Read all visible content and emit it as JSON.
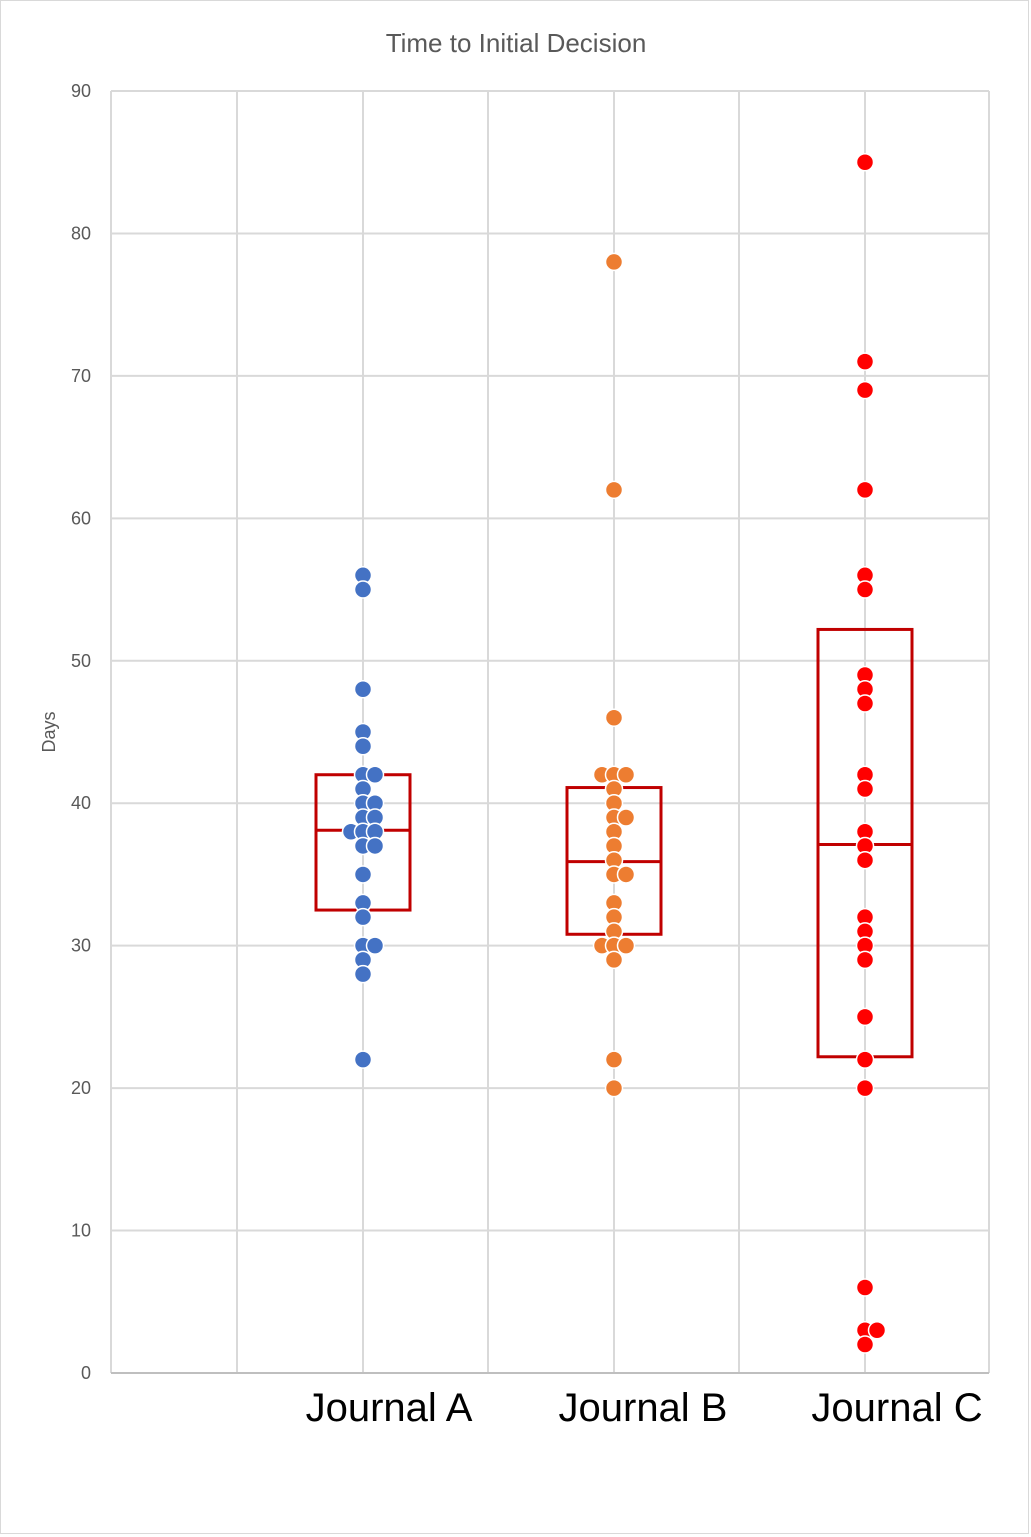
{
  "chart_data": {
    "type": "scatter",
    "title": "Time to Initial Decision",
    "ylabel": "Days",
    "xlabel": "",
    "ylim": [
      0,
      90
    ],
    "yticks": [
      "0",
      "10",
      "20",
      "30",
      "40",
      "50",
      "60",
      "70",
      "80",
      "90"
    ],
    "categories": [
      "Journal A",
      "Journal B",
      "Journal C"
    ],
    "grid": true,
    "legend": "none",
    "series": [
      {
        "category": "Journal A",
        "color": "#4472c4",
        "points": [
          {
            "x": 0,
            "y": 56
          },
          {
            "x": 0,
            "y": 55
          },
          {
            "x": 0,
            "y": 48
          },
          {
            "x": 0,
            "y": 45
          },
          {
            "x": 0,
            "y": 44
          },
          {
            "x": 0,
            "y": 42
          },
          {
            "x": 1,
            "y": 42
          },
          {
            "x": 0,
            "y": 41
          },
          {
            "x": 0,
            "y": 40
          },
          {
            "x": 1,
            "y": 40
          },
          {
            "x": 0,
            "y": 39
          },
          {
            "x": 1,
            "y": 39
          },
          {
            "x": -1,
            "y": 38
          },
          {
            "x": 0,
            "y": 38
          },
          {
            "x": 1,
            "y": 38
          },
          {
            "x": 0,
            "y": 37
          },
          {
            "x": 1,
            "y": 37
          },
          {
            "x": 0,
            "y": 35
          },
          {
            "x": 0,
            "y": 33
          },
          {
            "x": 0,
            "y": 32
          },
          {
            "x": 0,
            "y": 30
          },
          {
            "x": 1,
            "y": 30
          },
          {
            "x": 0,
            "y": 29
          },
          {
            "x": 0,
            "y": 28
          },
          {
            "x": 0,
            "y": 22
          }
        ],
        "box": {
          "q1": 32.5,
          "median": 38.1,
          "q3": 42
        }
      },
      {
        "category": "Journal B",
        "color": "#ed7d31",
        "points": [
          {
            "x": 0,
            "y": 78
          },
          {
            "x": 0,
            "y": 62
          },
          {
            "x": 0,
            "y": 46
          },
          {
            "x": -1,
            "y": 42
          },
          {
            "x": 0,
            "y": 42
          },
          {
            "x": 1,
            "y": 42
          },
          {
            "x": 0,
            "y": 41
          },
          {
            "x": 0,
            "y": 40
          },
          {
            "x": 0,
            "y": 39
          },
          {
            "x": 1,
            "y": 39
          },
          {
            "x": 0,
            "y": 38
          },
          {
            "x": 0,
            "y": 37
          },
          {
            "x": 0,
            "y": 36
          },
          {
            "x": 0,
            "y": 35
          },
          {
            "x": 1,
            "y": 35
          },
          {
            "x": 0,
            "y": 33
          },
          {
            "x": 0,
            "y": 32
          },
          {
            "x": 0,
            "y": 31
          },
          {
            "x": -1,
            "y": 30
          },
          {
            "x": 0,
            "y": 30
          },
          {
            "x": 1,
            "y": 30
          },
          {
            "x": 0,
            "y": 29
          },
          {
            "x": 0,
            "y": 22
          },
          {
            "x": 0,
            "y": 20
          }
        ],
        "box": {
          "q1": 30.8,
          "median": 35.9,
          "q3": 41.1
        }
      },
      {
        "category": "Journal C",
        "color": "#ff0000",
        "points": [
          {
            "x": 0,
            "y": 85
          },
          {
            "x": 0,
            "y": 71
          },
          {
            "x": 0,
            "y": 69
          },
          {
            "x": 0,
            "y": 62
          },
          {
            "x": 0,
            "y": 56
          },
          {
            "x": 0,
            "y": 55
          },
          {
            "x": 0,
            "y": 49
          },
          {
            "x": 0,
            "y": 48
          },
          {
            "x": 0,
            "y": 47
          },
          {
            "x": 0,
            "y": 42
          },
          {
            "x": 0,
            "y": 41
          },
          {
            "x": 0,
            "y": 38
          },
          {
            "x": 0,
            "y": 37
          },
          {
            "x": 0,
            "y": 36
          },
          {
            "x": 0,
            "y": 32
          },
          {
            "x": 0,
            "y": 31
          },
          {
            "x": 0,
            "y": 30
          },
          {
            "x": 0,
            "y": 29
          },
          {
            "x": 0,
            "y": 25
          },
          {
            "x": 0,
            "y": 22
          },
          {
            "x": 0,
            "y": 20
          },
          {
            "x": 0,
            "y": 6
          },
          {
            "x": 0,
            "y": 3
          },
          {
            "x": 1,
            "y": 3
          },
          {
            "x": 0,
            "y": 2
          }
        ],
        "box": {
          "q1": 22.2,
          "median": 37.1,
          "q3": 52.2
        }
      }
    ],
    "box_color": "#c00000"
  }
}
